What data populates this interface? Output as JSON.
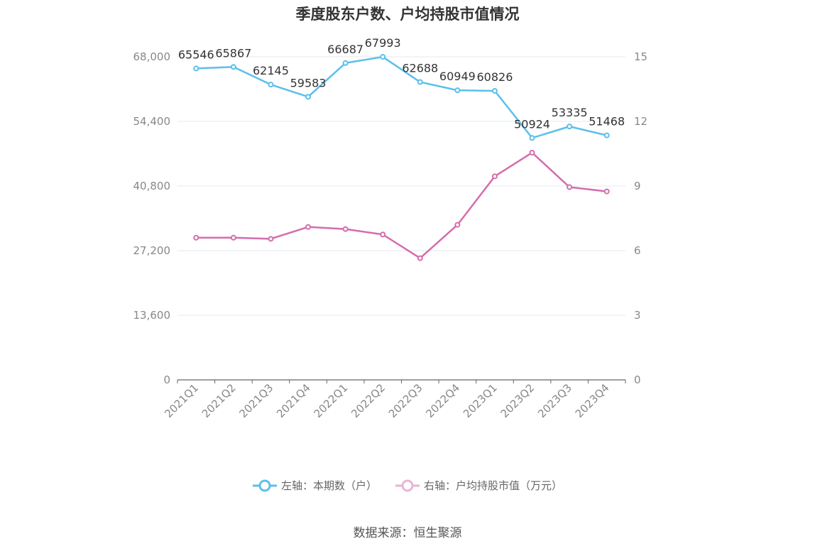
{
  "title": "季度股东户数、户均持股市值情况",
  "source": "数据来源：恒生聚源",
  "legend": [
    {
      "label": "左轴：本期数（户）",
      "color": "#5bbfec"
    },
    {
      "label": "右轴：户均持股市值（万元）",
      "color": "#d56cae",
      "faded": true
    }
  ],
  "chart_data": {
    "type": "line",
    "categories": [
      "2021Q1",
      "2021Q2",
      "2021Q3",
      "2021Q4",
      "2022Q1",
      "2022Q2",
      "2022Q3",
      "2022Q4",
      "2023Q1",
      "2023Q2",
      "2023Q3",
      "2023Q4"
    ],
    "left_axis": {
      "min": 0,
      "max": 68000,
      "ticks": [
        0,
        13600,
        27200,
        40800,
        54400,
        68000
      ],
      "tick_labels": [
        "0",
        "13,600",
        "27,200",
        "40,800",
        "54,400",
        "68,000"
      ]
    },
    "right_axis": {
      "min": 0,
      "max": 15,
      "ticks": [
        0,
        3,
        6,
        9,
        12,
        15
      ],
      "tick_labels": [
        "0",
        "3",
        "6",
        "9",
        "12",
        "15"
      ]
    },
    "series": [
      {
        "name": "左轴：本期数（户）",
        "axis": "left",
        "color": "#5bbfec",
        "show_labels": true,
        "values": [
          65546,
          65867,
          62145,
          59583,
          66687,
          67993,
          62688,
          60949,
          60826,
          50924,
          53335,
          51468
        ]
      },
      {
        "name": "右轴：户均持股市值（万元）",
        "axis": "right",
        "color": "#d56cae",
        "show_labels": false,
        "values": [
          6.6,
          6.6,
          6.55,
          7.1,
          7.0,
          6.75,
          5.65,
          7.2,
          9.45,
          10.55,
          8.95,
          8.75
        ]
      }
    ]
  }
}
